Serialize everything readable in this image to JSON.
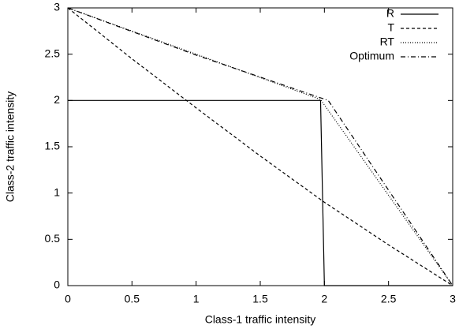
{
  "chart_data": {
    "type": "line",
    "xlabel": "Class-1 traffic intensity",
    "ylabel": "Class-2 traffic intensity",
    "xlim": [
      0,
      3
    ],
    "ylim": [
      0,
      3
    ],
    "xticks": [
      0,
      0.5,
      1,
      1.5,
      2,
      2.5,
      3
    ],
    "yticks": [
      0,
      0.5,
      1,
      1.5,
      2,
      2.5,
      3
    ],
    "legend": "upper right",
    "series": [
      {
        "name": "R",
        "color": "#000000",
        "dash": "solid",
        "x": [
          0,
          1.97,
          2,
          3
        ],
        "values": [
          2,
          2,
          0,
          0
        ]
      },
      {
        "name": "T",
        "color": "#000000",
        "dash": "dashed",
        "x": [
          0,
          0.5,
          1,
          1.5,
          2,
          2.5,
          3
        ],
        "values": [
          3,
          2.45,
          1.92,
          1.4,
          0.9,
          0.44,
          0
        ]
      },
      {
        "name": "RT",
        "color": "#000000",
        "dash": "dotted",
        "x": [
          0,
          1,
          1.97,
          3
        ],
        "values": [
          3,
          2.5,
          2.01,
          0
        ]
      },
      {
        "name": "Optimum",
        "color": "#000000",
        "dash": "dashdot",
        "x": [
          0,
          1,
          2.03,
          3
        ],
        "values": [
          3,
          2.49,
          2,
          0
        ]
      }
    ]
  }
}
